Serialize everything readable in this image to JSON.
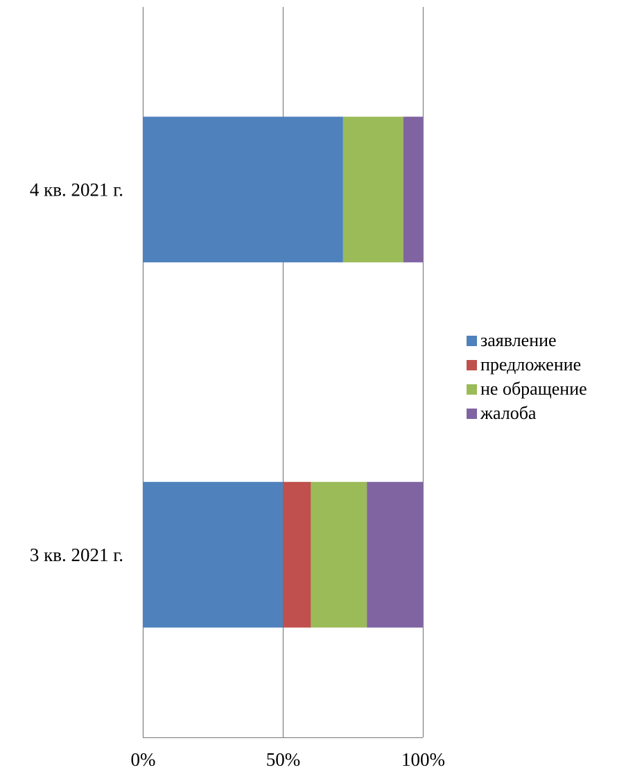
{
  "chart_data": {
    "type": "bar",
    "orientation": "horizontal",
    "stacking": "percent",
    "categories": [
      "3 кв. 2021 г.",
      "4 кв. 2021 г."
    ],
    "series": [
      {
        "name": "заявление",
        "values": [
          50,
          71.5
        ],
        "color": "#4F81BD"
      },
      {
        "name": "предложение",
        "values": [
          10,
          0
        ],
        "color": "#C0504D"
      },
      {
        "name": "не обращение",
        "values": [
          20,
          21.5
        ],
        "color": "#9BBB59"
      },
      {
        "name": "жалоба",
        "values": [
          20,
          7
        ],
        "color": "#8064A2"
      }
    ],
    "x_ticks": [
      "0%",
      "50%",
      "100%"
    ],
    "xlim": [
      0,
      100
    ],
    "grid": true,
    "legend_position": "right",
    "title": "",
    "xlabel": "",
    "ylabel": ""
  }
}
